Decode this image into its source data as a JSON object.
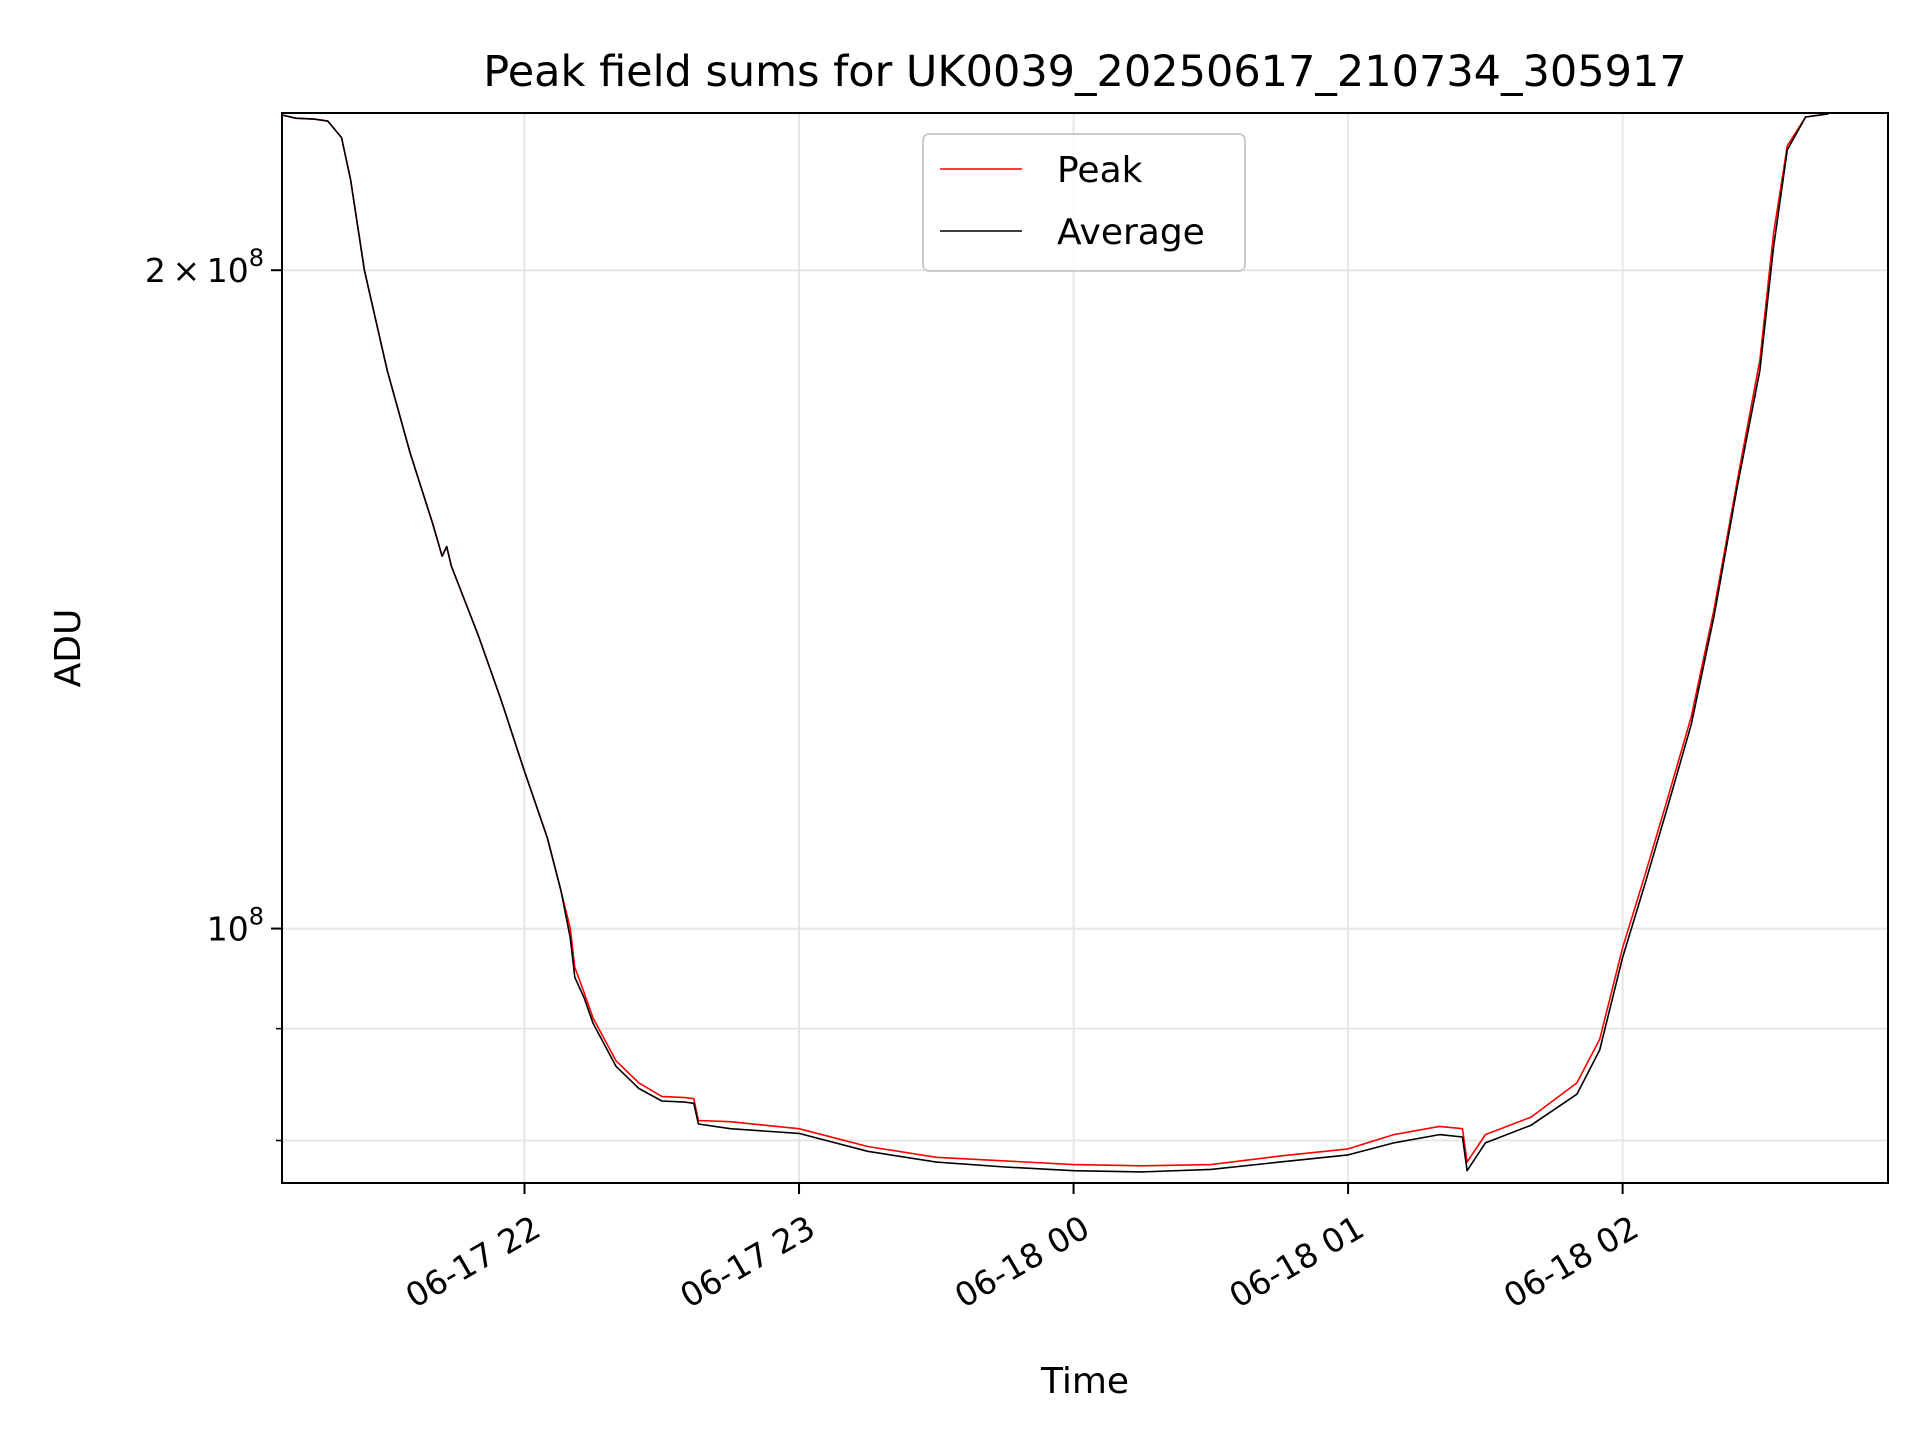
{
  "chart_data": {
    "type": "line",
    "title": "Peak field sums for UK0039_20250617_210734_305917",
    "xlabel": "Time",
    "ylabel": "ADU",
    "x_axis": "time",
    "y_scale": "log",
    "xlim": [
      "2025-06-17 21:07",
      "2025-06-18 02:58"
    ],
    "ylim": [
      76500000,
      236000000
    ],
    "x_ticks": [
      {
        "t": "2025-06-17 22:00",
        "label": "06-17 22"
      },
      {
        "t": "2025-06-17 23:00",
        "label": "06-17 23"
      },
      {
        "t": "2025-06-18 00:00",
        "label": "06-18 00"
      },
      {
        "t": "2025-06-18 01:00",
        "label": "06-18 01"
      },
      {
        "t": "2025-06-18 02:00",
        "label": "06-18 02"
      }
    ],
    "y_major_ticks": [
      {
        "v": 100000000,
        "base": "10",
        "exp": "8"
      },
      {
        "v": 200000000,
        "mantissa": "2",
        "base": "10",
        "exp": "8"
      }
    ],
    "y_minor_ticks": [
      80000000,
      90000000
    ],
    "grid": true,
    "legend_position": "upper center",
    "series": [
      {
        "name": "Peak",
        "color": "#ff0000",
        "points": [
          [
            "2025-06-17 21:07",
            235500000
          ],
          [
            "2025-06-17 21:10",
            234700000
          ],
          [
            "2025-06-17 21:14",
            234500000
          ],
          [
            "2025-06-17 21:17",
            234000000
          ],
          [
            "2025-06-17 21:20",
            230000000
          ],
          [
            "2025-06-17 21:22",
            220000000
          ],
          [
            "2025-06-17 21:25",
            200000000
          ],
          [
            "2025-06-17 21:30",
            180000000
          ],
          [
            "2025-06-17 21:35",
            165000000
          ],
          [
            "2025-06-17 21:40",
            153000000
          ],
          [
            "2025-06-17 21:42",
            148000000
          ],
          [
            "2025-06-17 21:43",
            149500000
          ],
          [
            "2025-06-17 21:44",
            146500000
          ],
          [
            "2025-06-17 21:50",
            136000000
          ],
          [
            "2025-06-17 21:55",
            127000000
          ],
          [
            "2025-06-17 22:00",
            118000000
          ],
          [
            "2025-06-17 22:05",
            110000000
          ],
          [
            "2025-06-17 22:08",
            104000000
          ],
          [
            "2025-06-17 22:10",
            100000000
          ],
          [
            "2025-06-17 22:11",
            96000000
          ],
          [
            "2025-06-17 22:13",
            93500000
          ],
          [
            "2025-06-17 22:15",
            91000000
          ],
          [
            "2025-06-17 22:20",
            87000000
          ],
          [
            "2025-06-17 22:25",
            85000000
          ],
          [
            "2025-06-17 22:30",
            83800000
          ],
          [
            "2025-06-17 22:35",
            83700000
          ],
          [
            "2025-06-17 22:37",
            83600000
          ],
          [
            "2025-06-17 22:38",
            81700000
          ],
          [
            "2025-06-17 22:45",
            81600000
          ],
          [
            "2025-06-17 23:00",
            81000000
          ],
          [
            "2025-06-17 23:15",
            79500000
          ],
          [
            "2025-06-17 23:30",
            78600000
          ],
          [
            "2025-06-17 23:45",
            78300000
          ],
          [
            "2025-06-18 00:00",
            78000000
          ],
          [
            "2025-06-18 00:15",
            77900000
          ],
          [
            "2025-06-18 00:30",
            78000000
          ],
          [
            "2025-06-18 00:45",
            78700000
          ],
          [
            "2025-06-18 01:00",
            79300000
          ],
          [
            "2025-06-18 01:10",
            80500000
          ],
          [
            "2025-06-18 01:20",
            81200000
          ],
          [
            "2025-06-18 01:25",
            81000000
          ],
          [
            "2025-06-18 01:26",
            78200000
          ],
          [
            "2025-06-18 01:30",
            80500000
          ],
          [
            "2025-06-18 01:40",
            82000000
          ],
          [
            "2025-06-18 01:50",
            85000000
          ],
          [
            "2025-06-18 01:55",
            89000000
          ],
          [
            "2025-06-18 02:00",
            98000000
          ],
          [
            "2025-06-18 02:05",
            106000000
          ],
          [
            "2025-06-18 02:10",
            115000000
          ],
          [
            "2025-06-18 02:15",
            125000000
          ],
          [
            "2025-06-18 02:20",
            140000000
          ],
          [
            "2025-06-18 02:25",
            160000000
          ],
          [
            "2025-06-18 02:30",
            182000000
          ],
          [
            "2025-06-18 02:33",
            208000000
          ],
          [
            "2025-06-18 02:36",
            228000000
          ],
          [
            "2025-06-18 02:40",
            235000000
          ],
          [
            "2025-06-18 02:45",
            235800000
          ]
        ]
      },
      {
        "name": "Average",
        "color": "#000000",
        "points": [
          [
            "2025-06-17 21:07",
            235500000
          ],
          [
            "2025-06-17 21:10",
            234700000
          ],
          [
            "2025-06-17 21:14",
            234500000
          ],
          [
            "2025-06-17 21:17",
            234000000
          ],
          [
            "2025-06-17 21:20",
            230000000
          ],
          [
            "2025-06-17 21:22",
            220000000
          ],
          [
            "2025-06-17 21:25",
            200000000
          ],
          [
            "2025-06-17 21:30",
            180000000
          ],
          [
            "2025-06-17 21:35",
            165000000
          ],
          [
            "2025-06-17 21:40",
            153000000
          ],
          [
            "2025-06-17 21:42",
            148000000
          ],
          [
            "2025-06-17 21:43",
            149500000
          ],
          [
            "2025-06-17 21:44",
            146500000
          ],
          [
            "2025-06-17 21:50",
            136000000
          ],
          [
            "2025-06-17 21:55",
            127000000
          ],
          [
            "2025-06-17 22:00",
            118000000
          ],
          [
            "2025-06-17 22:05",
            110000000
          ],
          [
            "2025-06-17 22:08",
            104000000
          ],
          [
            "2025-06-17 22:10",
            99000000
          ],
          [
            "2025-06-17 22:11",
            95000000
          ],
          [
            "2025-06-17 22:13",
            93000000
          ],
          [
            "2025-06-17 22:15",
            90500000
          ],
          [
            "2025-06-17 22:20",
            86500000
          ],
          [
            "2025-06-17 22:25",
            84500000
          ],
          [
            "2025-06-17 22:30",
            83400000
          ],
          [
            "2025-06-17 22:35",
            83300000
          ],
          [
            "2025-06-17 22:37",
            83200000
          ],
          [
            "2025-06-17 22:38",
            81400000
          ],
          [
            "2025-06-17 22:45",
            81000000
          ],
          [
            "2025-06-17 23:00",
            80600000
          ],
          [
            "2025-06-17 23:15",
            79100000
          ],
          [
            "2025-06-17 23:30",
            78200000
          ],
          [
            "2025-06-17 23:45",
            77800000
          ],
          [
            "2025-06-18 00:00",
            77500000
          ],
          [
            "2025-06-18 00:15",
            77400000
          ],
          [
            "2025-06-18 00:30",
            77600000
          ],
          [
            "2025-06-18 00:45",
            78200000
          ],
          [
            "2025-06-18 01:00",
            78800000
          ],
          [
            "2025-06-18 01:10",
            79800000
          ],
          [
            "2025-06-18 01:20",
            80500000
          ],
          [
            "2025-06-18 01:25",
            80300000
          ],
          [
            "2025-06-18 01:26",
            77500000
          ],
          [
            "2025-06-18 01:30",
            79800000
          ],
          [
            "2025-06-18 01:40",
            81300000
          ],
          [
            "2025-06-18 01:50",
            84000000
          ],
          [
            "2025-06-18 01:55",
            88000000
          ],
          [
            "2025-06-18 02:00",
            97000000
          ],
          [
            "2025-06-18 02:05",
            105000000
          ],
          [
            "2025-06-18 02:10",
            114000000
          ],
          [
            "2025-06-18 02:15",
            124000000
          ],
          [
            "2025-06-18 02:20",
            139000000
          ],
          [
            "2025-06-18 02:25",
            159000000
          ],
          [
            "2025-06-18 02:30",
            180000000
          ],
          [
            "2025-06-18 02:33",
            205000000
          ],
          [
            "2025-06-18 02:36",
            227000000
          ],
          [
            "2025-06-18 02:40",
            235000000
          ],
          [
            "2025-06-18 02:45",
            235800000
          ]
        ]
      }
    ]
  }
}
